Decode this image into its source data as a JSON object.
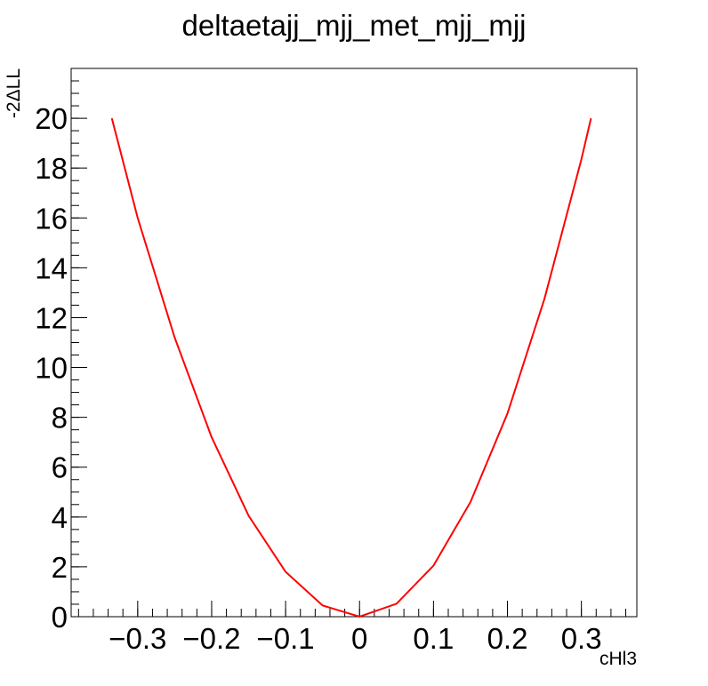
{
  "chart_data": {
    "type": "line",
    "title": "deltaetajj_mjj_met_mjj_mjj",
    "xlabel": "cHl3",
    "ylabel": "-2ΔLL",
    "xlim": [
      -0.39,
      0.375
    ],
    "ylim": [
      0,
      22
    ],
    "xticks": [
      -0.3,
      -0.2,
      -0.1,
      0,
      0.1,
      0.2,
      0.3
    ],
    "xtick_labels": [
      "−0.3",
      "−0.2",
      "−0.1",
      "0",
      "0.1",
      "0.2",
      "0.3"
    ],
    "yticks": [
      0,
      2,
      4,
      6,
      8,
      10,
      12,
      14,
      16,
      18,
      20
    ],
    "ytick_labels": [
      "0",
      "2",
      "4",
      "6",
      "8",
      "10",
      "12",
      "14",
      "16",
      "18",
      "20"
    ],
    "grid": false,
    "series": [
      {
        "color": "#ff0000",
        "x": [
          -0.335,
          -0.3,
          -0.25,
          -0.2,
          -0.15,
          -0.1,
          -0.05,
          0.0,
          0.05,
          0.1,
          0.15,
          0.2,
          0.25,
          0.3,
          0.313
        ],
        "y": [
          20.0,
          16.0,
          11.2,
          7.2,
          4.05,
          1.8,
          0.45,
          0.0,
          0.52,
          2.05,
          4.6,
          8.15,
          12.75,
          18.35,
          20.0
        ]
      }
    ]
  }
}
